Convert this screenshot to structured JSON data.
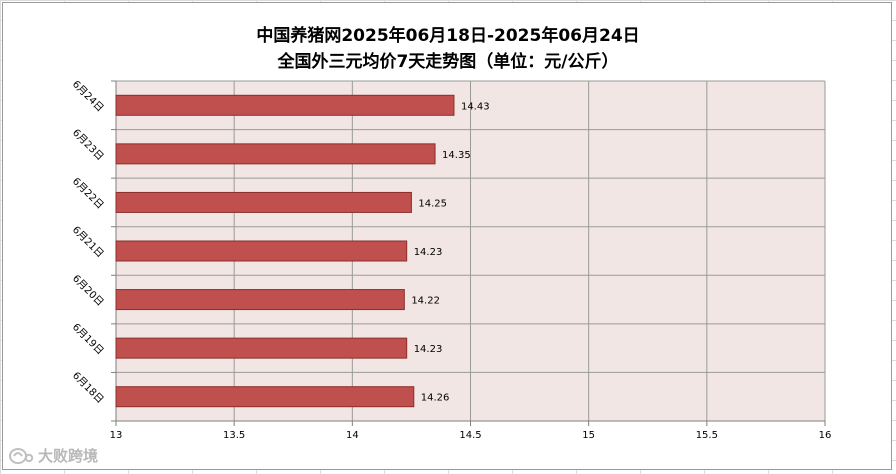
{
  "chart_data": {
    "type": "bar",
    "orientation": "horizontal",
    "title": "中国养猪网2025年06月18日-2025年06月24日",
    "subtitle": "全国外三元均价7天走势图（单位：元/公斤）",
    "categories": [
      "6月24日",
      "6月23日",
      "6月22日",
      "6月21日",
      "6月20日",
      "6月19日",
      "6月18日"
    ],
    "values": [
      14.43,
      14.35,
      14.25,
      14.23,
      14.22,
      14.23,
      14.26
    ],
    "data_labels": [
      "14.43",
      "14.35",
      "14.25",
      "14.23",
      "14.22",
      "14.23",
      "14.26"
    ],
    "x_ticks": [
      13,
      13.5,
      14,
      14.5,
      15,
      15.5,
      16
    ],
    "x_tick_labels": [
      "13",
      "13.5",
      "14",
      "14.5",
      "15",
      "15.5",
      "16"
    ],
    "xlim": [
      13,
      16
    ],
    "grid": true,
    "colors": {
      "bar_fill": "#c0504d",
      "bar_stroke": "#8b2e2b",
      "plot_background": "#f2e6e5",
      "grid": "#9a9a9a"
    }
  },
  "watermark": {
    "text": "大败跨境"
  }
}
